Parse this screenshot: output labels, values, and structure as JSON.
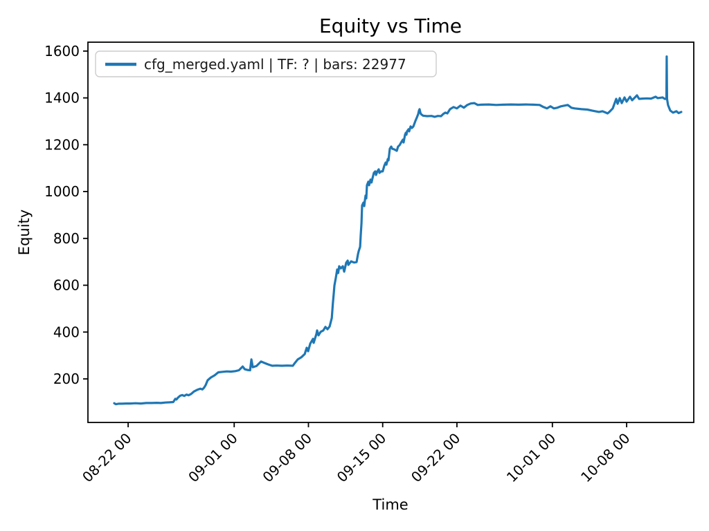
{
  "chart_data": {
    "type": "line",
    "title": "Equity vs Time",
    "xlabel": "Time",
    "ylabel": "Equity",
    "legend": [
      "cfg_merged.yaml | TF: ? | bars: 22977"
    ],
    "legend_position": "upper left",
    "grid": false,
    "line_color": "#1f77b4",
    "x_unit": "days since 08-22 00",
    "xlim_days": [
      -3.79,
      53.33
    ],
    "ylim": [
      14,
      1638
    ],
    "y_ticks": [
      200,
      400,
      600,
      800,
      1000,
      1200,
      1400,
      1600
    ],
    "x_ticks": [
      {
        "d": 0,
        "label": "08-22 00"
      },
      {
        "d": 10,
        "label": "09-01 00"
      },
      {
        "d": 17,
        "label": "09-08 00"
      },
      {
        "d": 24,
        "label": "09-15 00"
      },
      {
        "d": 31,
        "label": "09-22 00"
      },
      {
        "d": 40,
        "label": "10-01 00"
      },
      {
        "d": 47,
        "label": "10-08 00"
      }
    ],
    "series": [
      {
        "name": "cfg_merged.yaml | TF: ? | bars: 22977",
        "color": "#1f77b4",
        "points": [
          [
            -1.31,
            96
          ],
          [
            -1.15,
            92
          ],
          [
            -0.9,
            94
          ],
          [
            -0.6,
            94
          ],
          [
            -0.2,
            95
          ],
          [
            0.2,
            95
          ],
          [
            0.7,
            96
          ],
          [
            1.2,
            95
          ],
          [
            1.7,
            97
          ],
          [
            2.2,
            97
          ],
          [
            2.7,
            98
          ],
          [
            3.1,
            97
          ],
          [
            3.5,
            99
          ],
          [
            3.9,
            100
          ],
          [
            4.25,
            101
          ],
          [
            4.35,
            108
          ],
          [
            4.45,
            115
          ],
          [
            4.55,
            112
          ],
          [
            4.7,
            120
          ],
          [
            4.9,
            128
          ],
          [
            5.1,
            131
          ],
          [
            5.3,
            127
          ],
          [
            5.5,
            133
          ],
          [
            5.7,
            130
          ],
          [
            5.95,
            136
          ],
          [
            6.2,
            146
          ],
          [
            6.5,
            153
          ],
          [
            6.8,
            158
          ],
          [
            7.0,
            155
          ],
          [
            7.15,
            162
          ],
          [
            7.3,
            173
          ],
          [
            7.5,
            194
          ],
          [
            7.8,
            206
          ],
          [
            8.15,
            215
          ],
          [
            8.5,
            228
          ],
          [
            8.9,
            230
          ],
          [
            9.3,
            232
          ],
          [
            9.7,
            231
          ],
          [
            10.1,
            233
          ],
          [
            10.45,
            237
          ],
          [
            10.65,
            246
          ],
          [
            10.8,
            253
          ],
          [
            11.0,
            241
          ],
          [
            11.25,
            238
          ],
          [
            11.5,
            237
          ],
          [
            11.62,
            283
          ],
          [
            11.75,
            250
          ],
          [
            12.1,
            255
          ],
          [
            12.53,
            274
          ],
          [
            12.86,
            268
          ],
          [
            13.19,
            262
          ],
          [
            13.58,
            256
          ],
          [
            14.0,
            257
          ],
          [
            14.5,
            256
          ],
          [
            15.0,
            257
          ],
          [
            15.53,
            256
          ],
          [
            15.67,
            265
          ],
          [
            15.99,
            283
          ],
          [
            16.32,
            292
          ],
          [
            16.65,
            306
          ],
          [
            16.84,
            333
          ],
          [
            16.97,
            318
          ],
          [
            17.17,
            351
          ],
          [
            17.43,
            371
          ],
          [
            17.49,
            354
          ],
          [
            17.75,
            392
          ],
          [
            17.82,
            407
          ],
          [
            17.95,
            386
          ],
          [
            18.15,
            401
          ],
          [
            18.4,
            407
          ],
          [
            18.6,
            422
          ],
          [
            18.8,
            412
          ],
          [
            19.0,
            424
          ],
          [
            19.2,
            460
          ],
          [
            19.3,
            520
          ],
          [
            19.4,
            570
          ],
          [
            19.45,
            599
          ],
          [
            19.58,
            631
          ],
          [
            19.71,
            667
          ],
          [
            19.8,
            652
          ],
          [
            19.9,
            681
          ],
          [
            20.05,
            672
          ],
          [
            20.24,
            681
          ],
          [
            20.37,
            658
          ],
          [
            20.56,
            696
          ],
          [
            20.7,
            705
          ],
          [
            20.76,
            687
          ],
          [
            21.02,
            702
          ],
          [
            21.3,
            697
          ],
          [
            21.54,
            699
          ],
          [
            21.67,
            732
          ],
          [
            21.74,
            746
          ],
          [
            21.87,
            764
          ],
          [
            21.93,
            814
          ],
          [
            22.0,
            865
          ],
          [
            22.04,
            918
          ],
          [
            22.06,
            941
          ],
          [
            22.19,
            953
          ],
          [
            22.26,
            938
          ],
          [
            22.32,
            962
          ],
          [
            22.39,
            983
          ],
          [
            22.45,
            971
          ],
          [
            22.52,
            1027
          ],
          [
            22.65,
            1042
          ],
          [
            22.72,
            1027
          ],
          [
            22.85,
            1051
          ],
          [
            22.95,
            1039
          ],
          [
            23.04,
            1057
          ],
          [
            23.17,
            1080
          ],
          [
            23.3,
            1086
          ],
          [
            23.37,
            1071
          ],
          [
            23.5,
            1086
          ],
          [
            23.63,
            1095
          ],
          [
            23.7,
            1080
          ],
          [
            23.85,
            1086
          ],
          [
            24.0,
            1086
          ],
          [
            24.15,
            1110
          ],
          [
            24.28,
            1124
          ],
          [
            24.35,
            1115
          ],
          [
            24.48,
            1139
          ],
          [
            24.55,
            1133
          ],
          [
            24.67,
            1183
          ],
          [
            24.8,
            1192
          ],
          [
            24.9,
            1183
          ],
          [
            25.1,
            1180
          ],
          [
            25.33,
            1174
          ],
          [
            25.45,
            1192
          ],
          [
            25.59,
            1198
          ],
          [
            25.78,
            1213
          ],
          [
            25.91,
            1222
          ],
          [
            25.97,
            1210
          ],
          [
            26.11,
            1243
          ],
          [
            26.18,
            1251
          ],
          [
            26.24,
            1243
          ],
          [
            26.3,
            1257
          ],
          [
            26.44,
            1266
          ],
          [
            26.5,
            1257
          ],
          [
            26.63,
            1278
          ],
          [
            26.76,
            1272
          ],
          [
            26.89,
            1278
          ],
          [
            27.09,
            1302
          ],
          [
            27.22,
            1316
          ],
          [
            27.35,
            1331
          ],
          [
            27.42,
            1346
          ],
          [
            27.48,
            1352
          ],
          [
            27.55,
            1337
          ],
          [
            27.61,
            1331
          ],
          [
            27.8,
            1324
          ],
          [
            28.2,
            1322
          ],
          [
            28.6,
            1323
          ],
          [
            28.9,
            1319
          ],
          [
            29.2,
            1323
          ],
          [
            29.5,
            1322
          ],
          [
            29.7,
            1331
          ],
          [
            29.9,
            1337
          ],
          [
            30.1,
            1334
          ],
          [
            30.35,
            1352
          ],
          [
            30.68,
            1361
          ],
          [
            31.0,
            1355
          ],
          [
            31.33,
            1367
          ],
          [
            31.66,
            1358
          ],
          [
            31.98,
            1370
          ],
          [
            32.3,
            1376
          ],
          [
            32.64,
            1378
          ],
          [
            32.96,
            1370
          ],
          [
            33.3,
            1371
          ],
          [
            34.0,
            1372
          ],
          [
            34.7,
            1370
          ],
          [
            35.4,
            1371
          ],
          [
            36.1,
            1372
          ],
          [
            36.8,
            1371
          ],
          [
            37.5,
            1372
          ],
          [
            38.2,
            1371
          ],
          [
            38.8,
            1370
          ],
          [
            39.16,
            1361
          ],
          [
            39.49,
            1355
          ],
          [
            39.82,
            1364
          ],
          [
            40.14,
            1355
          ],
          [
            40.47,
            1358
          ],
          [
            40.8,
            1364
          ],
          [
            41.12,
            1367
          ],
          [
            41.45,
            1370
          ],
          [
            41.78,
            1358
          ],
          [
            42.1,
            1355
          ],
          [
            42.75,
            1352
          ],
          [
            43.3,
            1350
          ],
          [
            43.73,
            1346
          ],
          [
            44.39,
            1340
          ],
          [
            44.71,
            1343
          ],
          [
            45.04,
            1337
          ],
          [
            45.2,
            1334
          ],
          [
            45.37,
            1340
          ],
          [
            45.69,
            1355
          ],
          [
            45.85,
            1375
          ],
          [
            46.02,
            1396
          ],
          [
            46.15,
            1375
          ],
          [
            46.35,
            1399
          ],
          [
            46.54,
            1378
          ],
          [
            46.8,
            1402
          ],
          [
            47.0,
            1384
          ],
          [
            47.32,
            1405
          ],
          [
            47.52,
            1390
          ],
          [
            47.98,
            1411
          ],
          [
            48.17,
            1396
          ],
          [
            48.5,
            1397
          ],
          [
            48.9,
            1398
          ],
          [
            49.3,
            1397
          ],
          [
            49.74,
            1405
          ],
          [
            49.93,
            1399
          ],
          [
            50.39,
            1402
          ],
          [
            50.59,
            1396
          ],
          [
            50.75,
            1396
          ],
          [
            50.78,
            1577
          ],
          [
            50.81,
            1396
          ],
          [
            50.9,
            1370
          ],
          [
            51.11,
            1346
          ],
          [
            51.37,
            1337
          ],
          [
            51.7,
            1343
          ],
          [
            51.9,
            1335
          ],
          [
            52.15,
            1340
          ]
        ]
      }
    ]
  }
}
